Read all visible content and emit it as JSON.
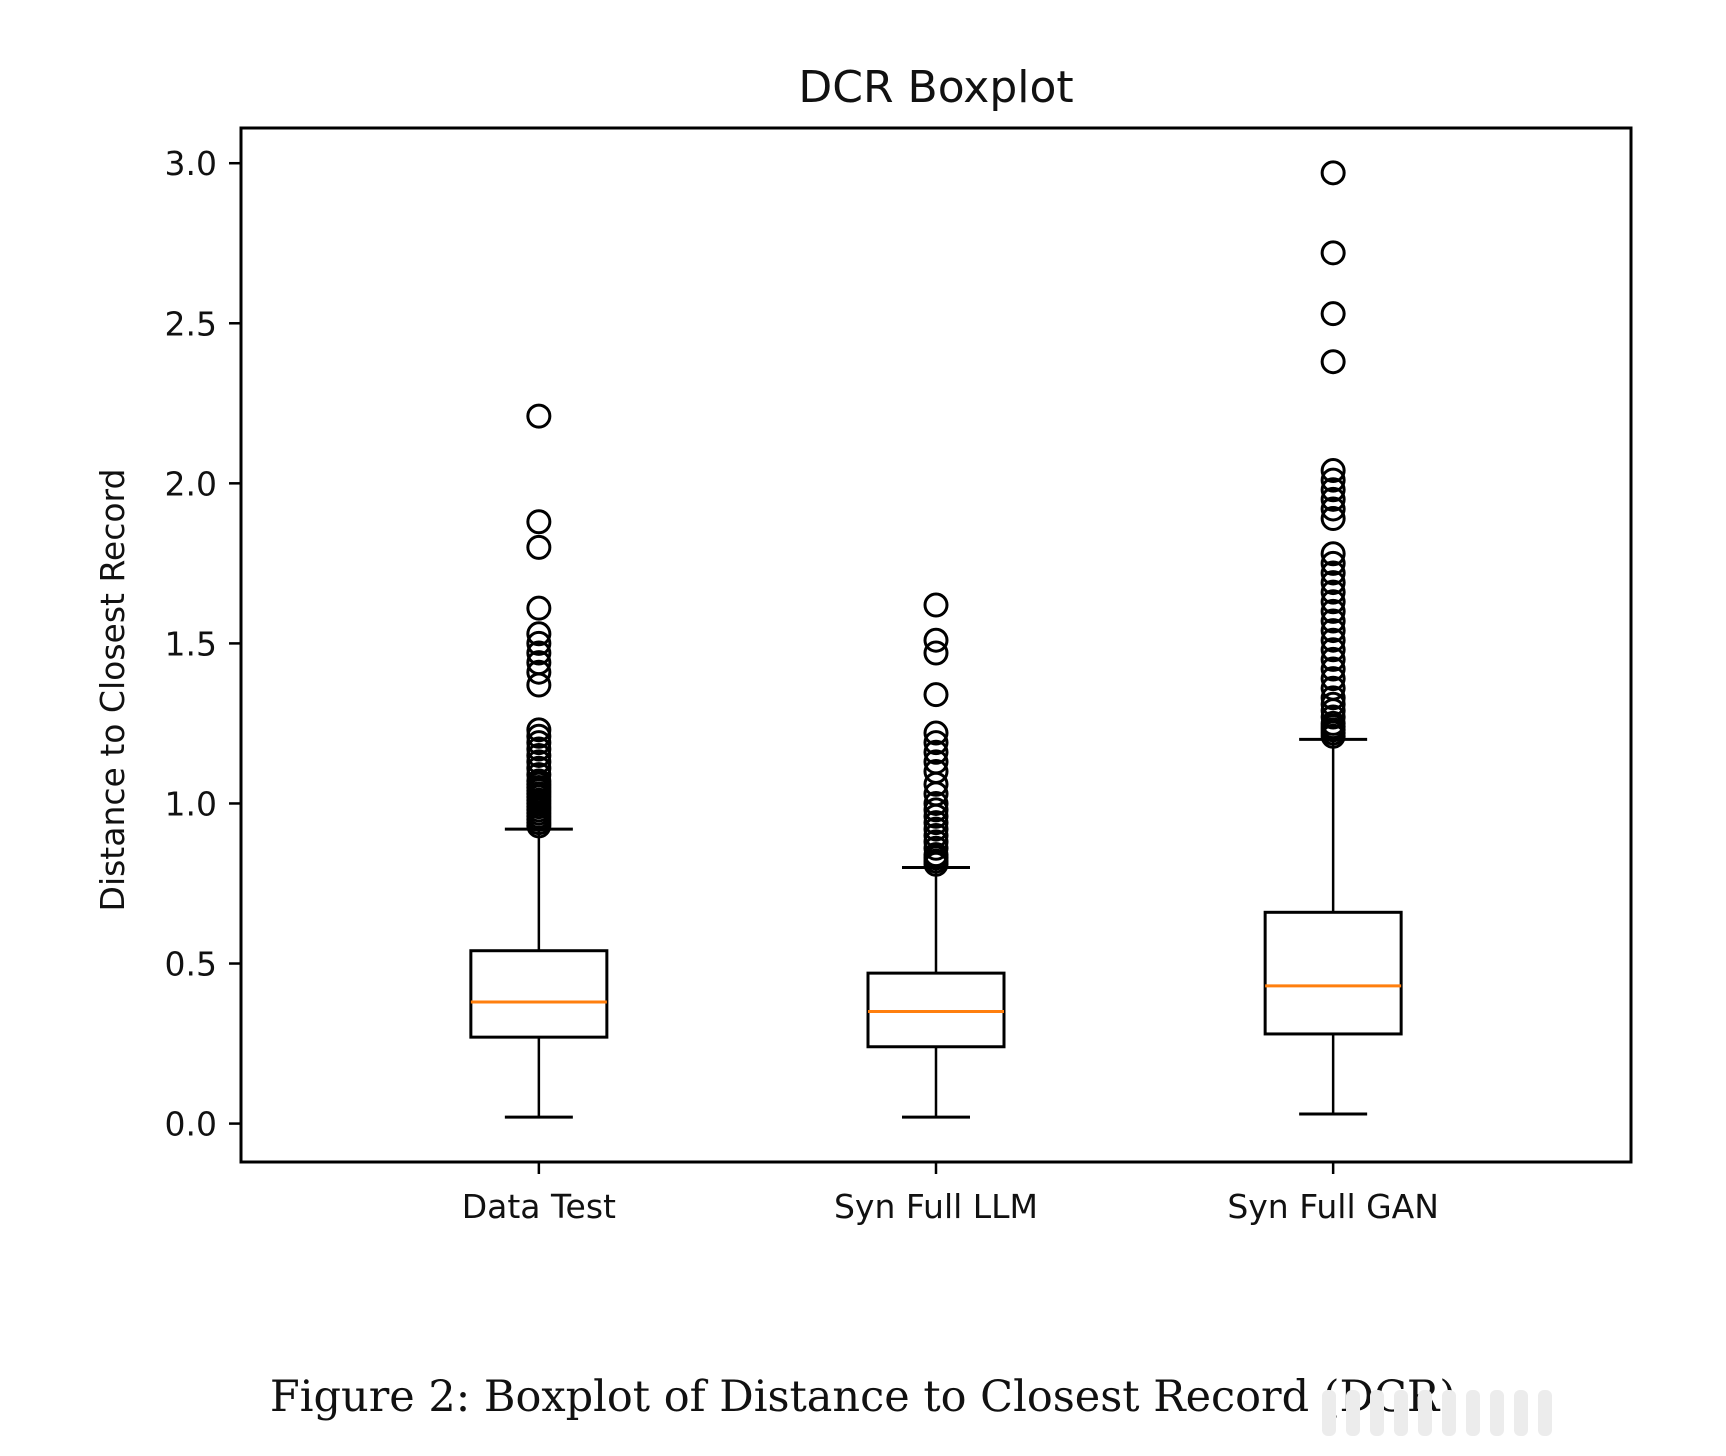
{
  "chart_data": {
    "type": "boxplot",
    "title": "DCR Boxplot",
    "xlabel": "",
    "ylabel": "Distance to Closest Record",
    "ylim": [
      -0.12,
      3.11
    ],
    "yticks": [
      "0.0",
      "0.5",
      "1.0",
      "1.5",
      "2.0",
      "2.5",
      "3.0"
    ],
    "categories": [
      "Data Test",
      "Syn Full LLM",
      "Syn Full GAN"
    ],
    "colors": {
      "box": "#000000",
      "median": "#ff7f0e",
      "frame": "#000000"
    },
    "boxes": [
      {
        "name": "Data Test",
        "whisker_low": 0.02,
        "q1": 0.27,
        "median": 0.38,
        "q3": 0.54,
        "whisker_high": 0.92,
        "outliers": [
          0.93,
          0.94,
          0.95,
          0.96,
          0.97,
          0.98,
          0.99,
          1.0,
          1.01,
          1.02,
          1.03,
          1.04,
          1.05,
          1.06,
          1.07,
          1.09,
          1.11,
          1.13,
          1.15,
          1.17,
          1.19,
          1.21,
          1.23,
          1.37,
          1.41,
          1.44,
          1.47,
          1.5,
          1.53,
          1.61,
          1.8,
          1.88,
          2.21
        ]
      },
      {
        "name": "Syn Full LLM",
        "whisker_low": 0.02,
        "q1": 0.24,
        "median": 0.35,
        "q3": 0.47,
        "whisker_high": 0.8,
        "outliers": [
          0.81,
          0.82,
          0.83,
          0.84,
          0.86,
          0.88,
          0.9,
          0.92,
          0.94,
          0.96,
          0.98,
          1.0,
          1.03,
          1.06,
          1.1,
          1.13,
          1.16,
          1.19,
          1.22,
          1.34,
          1.47,
          1.51,
          1.62
        ]
      },
      {
        "name": "Syn Full GAN",
        "whisker_low": 0.03,
        "q1": 0.28,
        "median": 0.43,
        "q3": 0.66,
        "whisker_high": 1.2,
        "outliers": [
          1.21,
          1.22,
          1.23,
          1.24,
          1.25,
          1.27,
          1.29,
          1.31,
          1.33,
          1.36,
          1.39,
          1.42,
          1.45,
          1.48,
          1.51,
          1.54,
          1.57,
          1.6,
          1.63,
          1.66,
          1.69,
          1.72,
          1.75,
          1.78,
          1.89,
          1.92,
          1.95,
          1.98,
          2.01,
          2.04,
          2.38,
          2.53,
          2.72,
          2.97
        ]
      }
    ]
  },
  "caption": "Figure 2: Boxplot of Distance to Closest Record (DCR)"
}
